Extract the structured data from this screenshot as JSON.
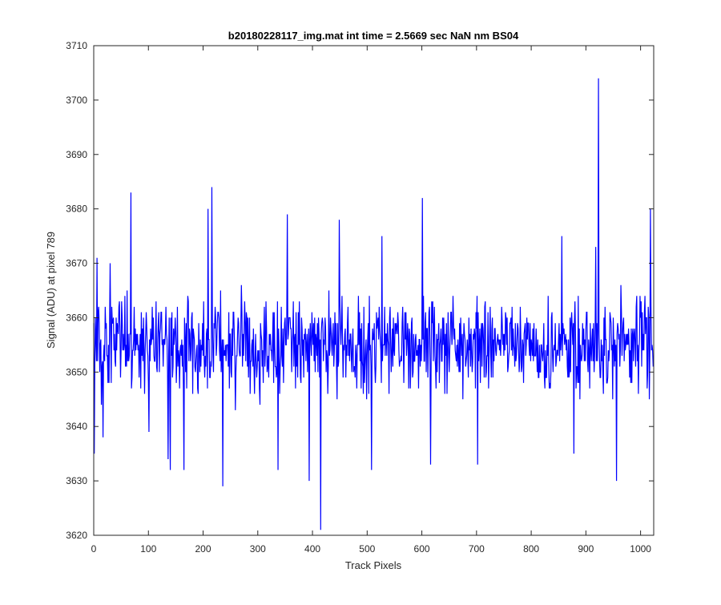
{
  "figure": {
    "background": "#ffffff"
  },
  "chart_data": {
    "type": "line",
    "title": "b20180228117_img.mat int time = 2.5669 sec  NaN nm BS04",
    "xlabel": "Track Pixels",
    "ylabel": "Signal (ADU) at pixel 789",
    "xlim": [
      0,
      1024
    ],
    "ylim": [
      3620,
      3710
    ],
    "xticks": [
      0,
      100,
      200,
      300,
      400,
      500,
      600,
      700,
      800,
      900,
      1000
    ],
    "yticks": [
      3620,
      3630,
      3640,
      3650,
      3660,
      3670,
      3680,
      3690,
      3700,
      3710
    ],
    "grid": false,
    "legend": "none",
    "series": [
      {
        "color": "#0000ff",
        "n_points": 1024,
        "baseline": 3655,
        "noise_half_range": 8,
        "spikes": [
          {
            "x": 1,
            "y": 3635
          },
          {
            "x": 6,
            "y": 3671
          },
          {
            "x": 17,
            "y": 3638
          },
          {
            "x": 30,
            "y": 3670
          },
          {
            "x": 68,
            "y": 3683
          },
          {
            "x": 101,
            "y": 3639
          },
          {
            "x": 136,
            "y": 3634
          },
          {
            "x": 140,
            "y": 3632
          },
          {
            "x": 165,
            "y": 3632
          },
          {
            "x": 209,
            "y": 3680
          },
          {
            "x": 216,
            "y": 3684
          },
          {
            "x": 236,
            "y": 3629
          },
          {
            "x": 337,
            "y": 3632
          },
          {
            "x": 354,
            "y": 3679
          },
          {
            "x": 394,
            "y": 3630
          },
          {
            "x": 415,
            "y": 3621
          },
          {
            "x": 449,
            "y": 3678
          },
          {
            "x": 508,
            "y": 3632
          },
          {
            "x": 527,
            "y": 3675
          },
          {
            "x": 601,
            "y": 3682
          },
          {
            "x": 616,
            "y": 3633
          },
          {
            "x": 702,
            "y": 3633
          },
          {
            "x": 856,
            "y": 3675
          },
          {
            "x": 878,
            "y": 3635
          },
          {
            "x": 918,
            "y": 3673
          },
          {
            "x": 923,
            "y": 3704
          },
          {
            "x": 956,
            "y": 3630
          },
          {
            "x": 1018,
            "y": 3680
          },
          {
            "x": 1023,
            "y": 3651
          }
        ]
      }
    ]
  }
}
